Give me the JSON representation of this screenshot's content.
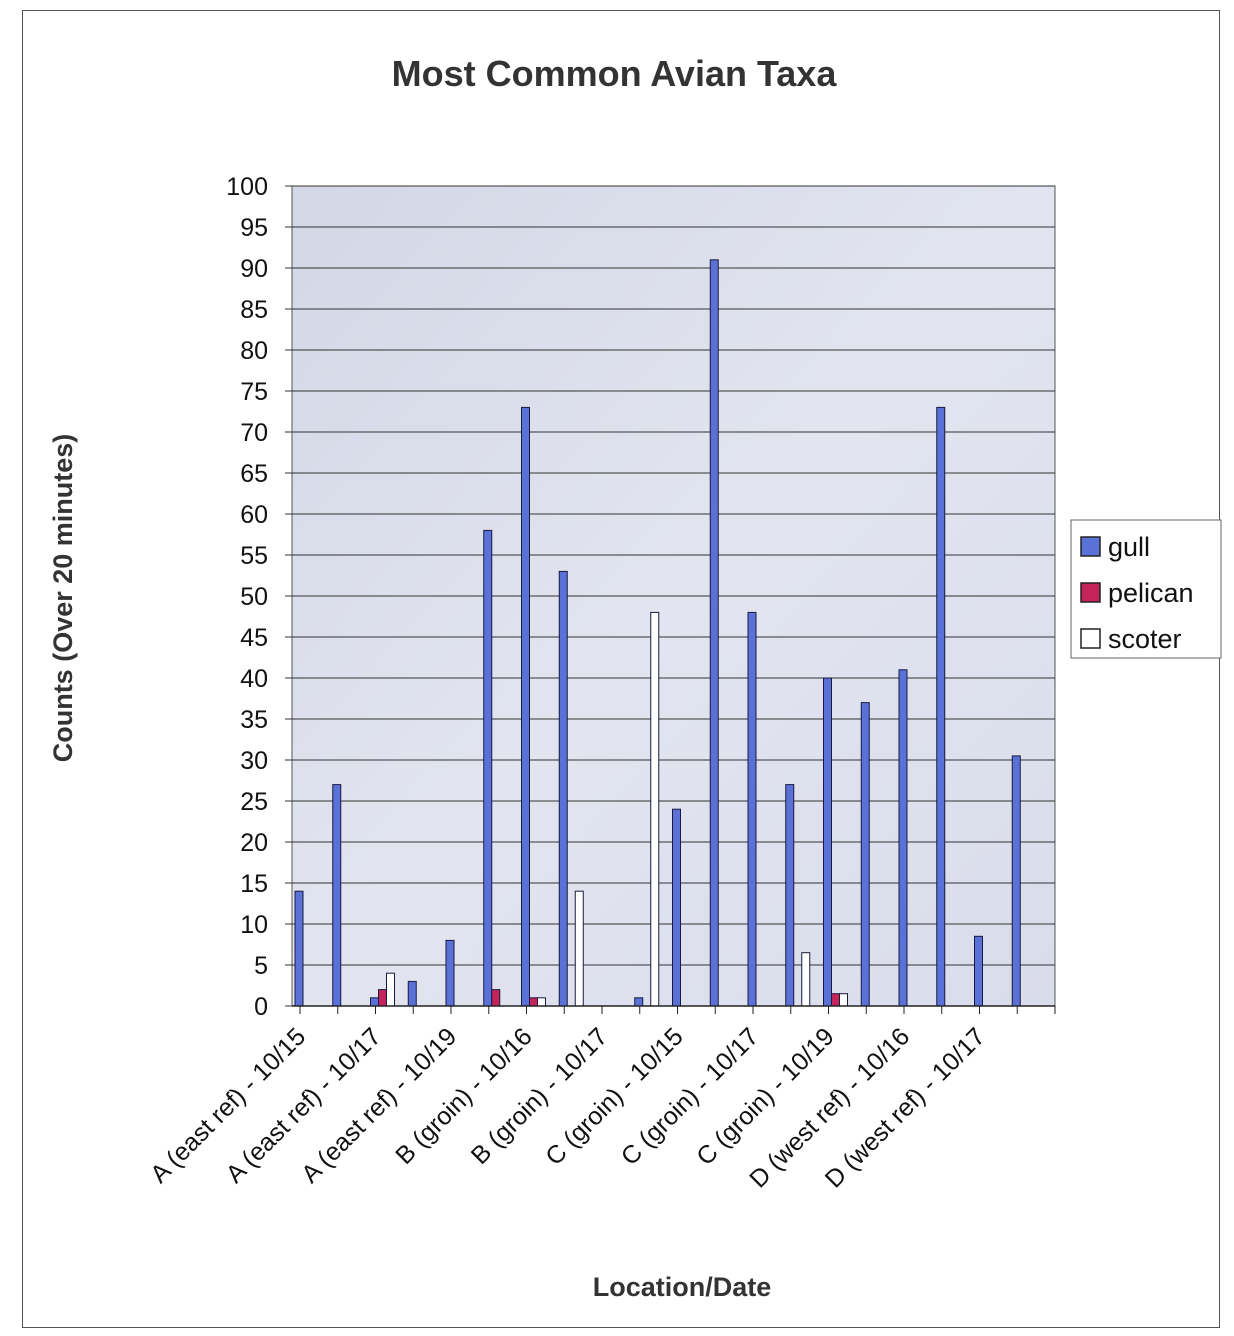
{
  "chart_data": {
    "type": "bar",
    "title": "Most Common Avian Taxa",
    "xlabel": "Location/Date",
    "ylabel": "Counts (Over 20 minutes)",
    "ylim": [
      0,
      100
    ],
    "ytick_step": 5,
    "grid": true,
    "legend_position": "right",
    "categories": [
      "A (east ref) - 10/15",
      "",
      "A (east ref) - 10/17",
      "",
      "A (east ref) - 10/19",
      "",
      "B (groin) - 10/16",
      "",
      "B (groin) - 10/17",
      "",
      "C (groin) - 10/15",
      "",
      "C (groin) - 10/17",
      "",
      "C (groin) - 10/19",
      "",
      "D (west ref) - 10/16",
      "",
      "D (west ref) - 10/17",
      ""
    ],
    "series": [
      {
        "name": "gull",
        "color": "#5a72d8",
        "values": [
          14,
          27,
          1,
          3,
          8,
          58,
          73,
          53,
          0,
          1,
          24,
          91,
          48,
          27,
          40,
          37,
          41,
          73,
          8.5,
          30.5
        ]
      },
      {
        "name": "pelican",
        "color": "#c4245a",
        "values": [
          0,
          0,
          2,
          0,
          0,
          2,
          1,
          0,
          0,
          0,
          0,
          0,
          0,
          0,
          1.5,
          0,
          0,
          0,
          0,
          0
        ]
      },
      {
        "name": "scoter",
        "color": "#ffffff",
        "values": [
          0,
          0,
          4,
          0,
          0,
          0,
          1,
          14,
          0,
          48,
          0,
          0,
          0,
          6.5,
          1.5,
          0,
          0,
          0,
          0,
          0
        ]
      }
    ]
  }
}
